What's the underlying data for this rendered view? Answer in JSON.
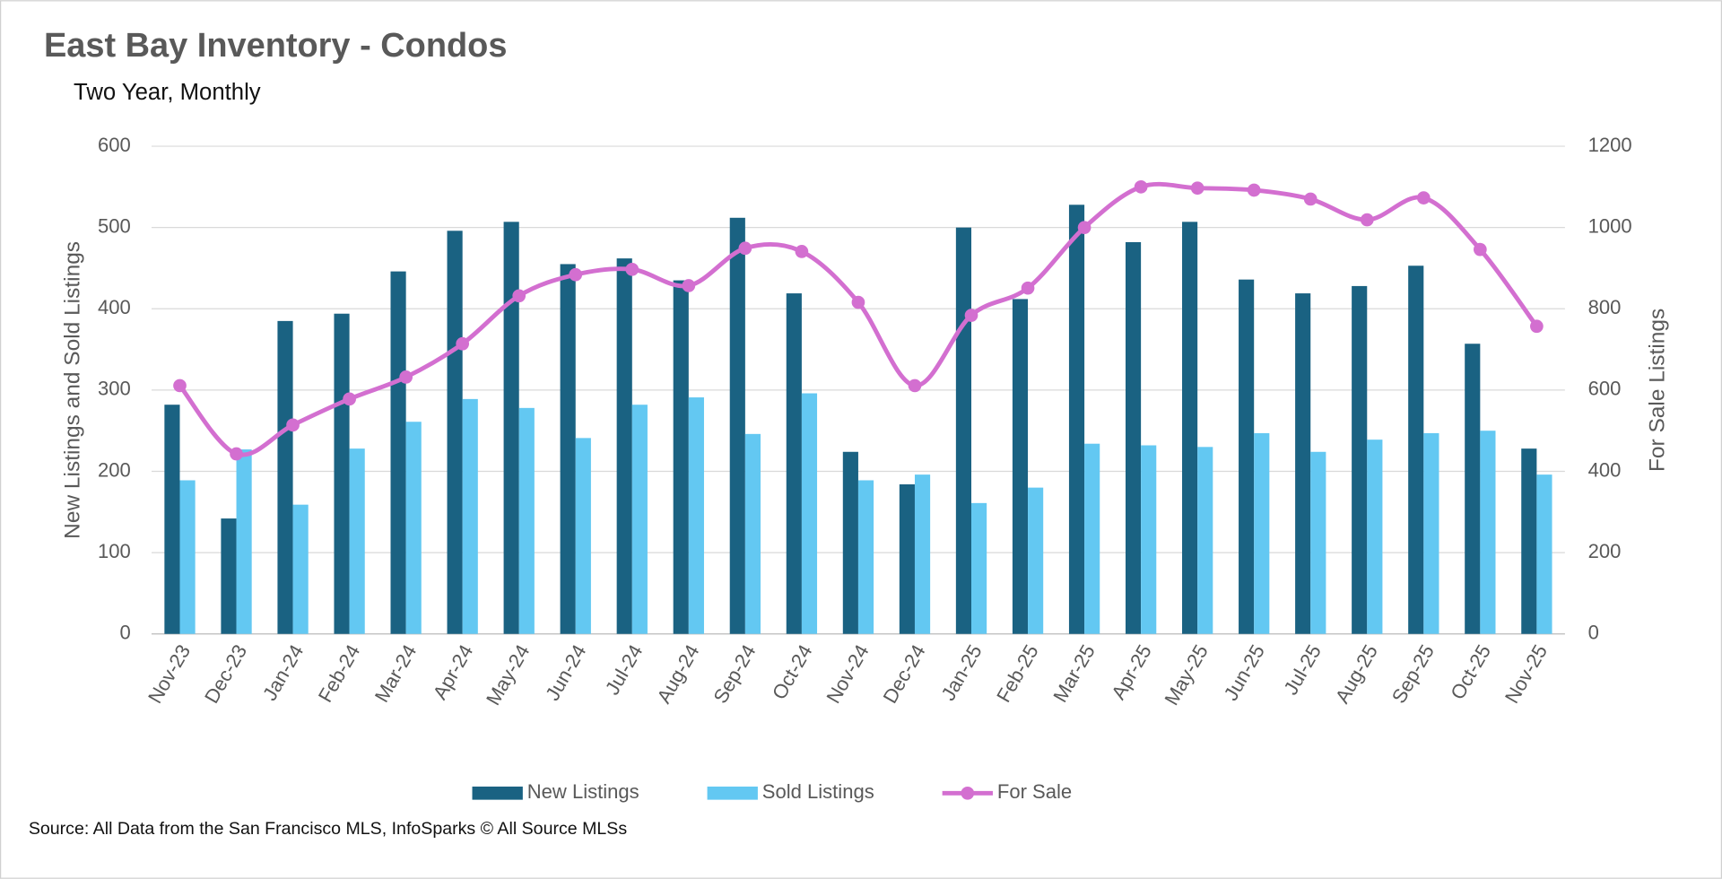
{
  "chart_data": {
    "type": "bar",
    "title": "East Bay Inventory - Condos",
    "subtitle": "Two Year, Monthly",
    "y_label": "New Listings and Sold Listings",
    "y2_label": "For Sale Listings",
    "source": "Source: All Data from the San Francisco MLS, InfoSparks © All Source MLSs",
    "categories": [
      "Nov-23",
      "Dec-23",
      "Jan-24",
      "Feb-24",
      "Mar-24",
      "Apr-24",
      "May-24",
      "Jun-24",
      "Jul-24",
      "Aug-24",
      "Sep-24",
      "Oct-24",
      "Nov-24",
      "Dec-24",
      "Jan-25",
      "Feb-25",
      "Mar-25",
      "Apr-25",
      "May-25",
      "Jun-25",
      "Jul-25",
      "Aug-25",
      "Sep-25",
      "Oct-25",
      "Nov-25"
    ],
    "series": [
      {
        "name": "New Listings",
        "type": "bar",
        "color": "#1a6282",
        "values": [
          282,
          142,
          385,
          394,
          446,
          496,
          507,
          455,
          462,
          435,
          512,
          419,
          224,
          184,
          500,
          412,
          528,
          482,
          507,
          436,
          419,
          428,
          453,
          357,
          228
        ]
      },
      {
        "name": "Sold Listings",
        "type": "bar",
        "color": "#63c8f2",
        "values": [
          189,
          227,
          159,
          228,
          261,
          289,
          278,
          241,
          282,
          291,
          246,
          296,
          189,
          196,
          161,
          180,
          234,
          232,
          230,
          247,
          224,
          239,
          247,
          250,
          196
        ]
      },
      {
        "name": "For Sale",
        "type": "line",
        "axis": "y2",
        "color": "#d36fd0",
        "values": [
          611,
          443,
          514,
          578,
          632,
          714,
          832,
          884,
          897,
          857,
          949,
          941,
          816,
          611,
          784,
          851,
          1000,
          1100,
          1097,
          1092,
          1070,
          1019,
          1073,
          946,
          757
        ]
      }
    ],
    "ylim": [
      0,
      600
    ],
    "yticks": [
      0,
      100,
      200,
      300,
      400,
      500,
      600
    ],
    "y2lim": [
      0,
      1200
    ],
    "y2ticks": [
      0,
      200,
      400,
      600,
      800,
      1000,
      1200
    ],
    "grid": true,
    "legend": "bottom"
  }
}
